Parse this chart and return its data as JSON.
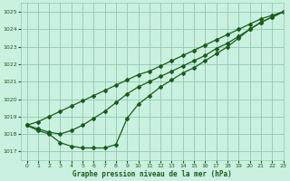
{
  "title": "Graphe pression niveau de la mer (hPa)",
  "background_color": "#caf0e0",
  "grid_color": "#90c8b0",
  "line_color": "#1a5c1a",
  "xlim": [
    -0.5,
    23
  ],
  "ylim": [
    1016.5,
    1025.5
  ],
  "yticks": [
    1017,
    1018,
    1019,
    1020,
    1021,
    1022,
    1023,
    1024,
    1025
  ],
  "xticks": [
    0,
    1,
    2,
    3,
    4,
    5,
    6,
    7,
    8,
    9,
    10,
    11,
    12,
    13,
    14,
    15,
    16,
    17,
    18,
    19,
    20,
    21,
    22,
    23
  ],
  "series1": {
    "x": [
      0,
      1,
      2,
      3,
      4,
      5,
      6,
      7,
      8,
      9,
      10,
      11,
      12,
      13,
      14,
      15,
      16,
      17,
      18,
      19,
      20,
      21,
      22,
      23
    ],
    "y": [
      1018.5,
      1018.7,
      1019.0,
      1019.3,
      1019.6,
      1019.9,
      1020.2,
      1020.5,
      1020.8,
      1021.1,
      1021.4,
      1021.6,
      1021.9,
      1022.2,
      1022.5,
      1022.8,
      1023.1,
      1023.4,
      1023.7,
      1024.0,
      1024.3,
      1024.6,
      1024.8,
      1025.0
    ]
  },
  "series2": {
    "x": [
      0,
      1,
      2,
      3,
      4,
      5,
      6,
      7,
      8,
      9,
      10,
      11,
      12,
      13,
      14,
      15,
      16,
      17,
      18,
      19,
      20,
      21,
      22,
      23
    ],
    "y": [
      1018.5,
      1018.3,
      1018.1,
      1018.0,
      1018.2,
      1018.5,
      1018.9,
      1019.3,
      1019.8,
      1020.3,
      1020.7,
      1021.0,
      1021.3,
      1021.6,
      1021.9,
      1022.2,
      1022.5,
      1022.9,
      1023.2,
      1023.6,
      1024.0,
      1024.4,
      1024.7,
      1025.0
    ]
  },
  "series3": {
    "x": [
      0,
      1,
      2,
      3,
      4,
      5,
      6,
      7,
      8,
      9,
      10,
      11,
      12,
      13,
      14,
      15,
      16,
      17,
      18,
      19,
      20,
      21,
      22,
      23
    ],
    "y": [
      1018.5,
      1018.2,
      1018.0,
      1017.5,
      1017.3,
      1017.2,
      1017.2,
      1017.2,
      1017.4,
      1018.9,
      1019.7,
      1020.2,
      1020.7,
      1021.1,
      1021.5,
      1021.8,
      1022.2,
      1022.6,
      1023.0,
      1023.5,
      1024.0,
      1024.4,
      1024.7,
      1025.0
    ]
  }
}
